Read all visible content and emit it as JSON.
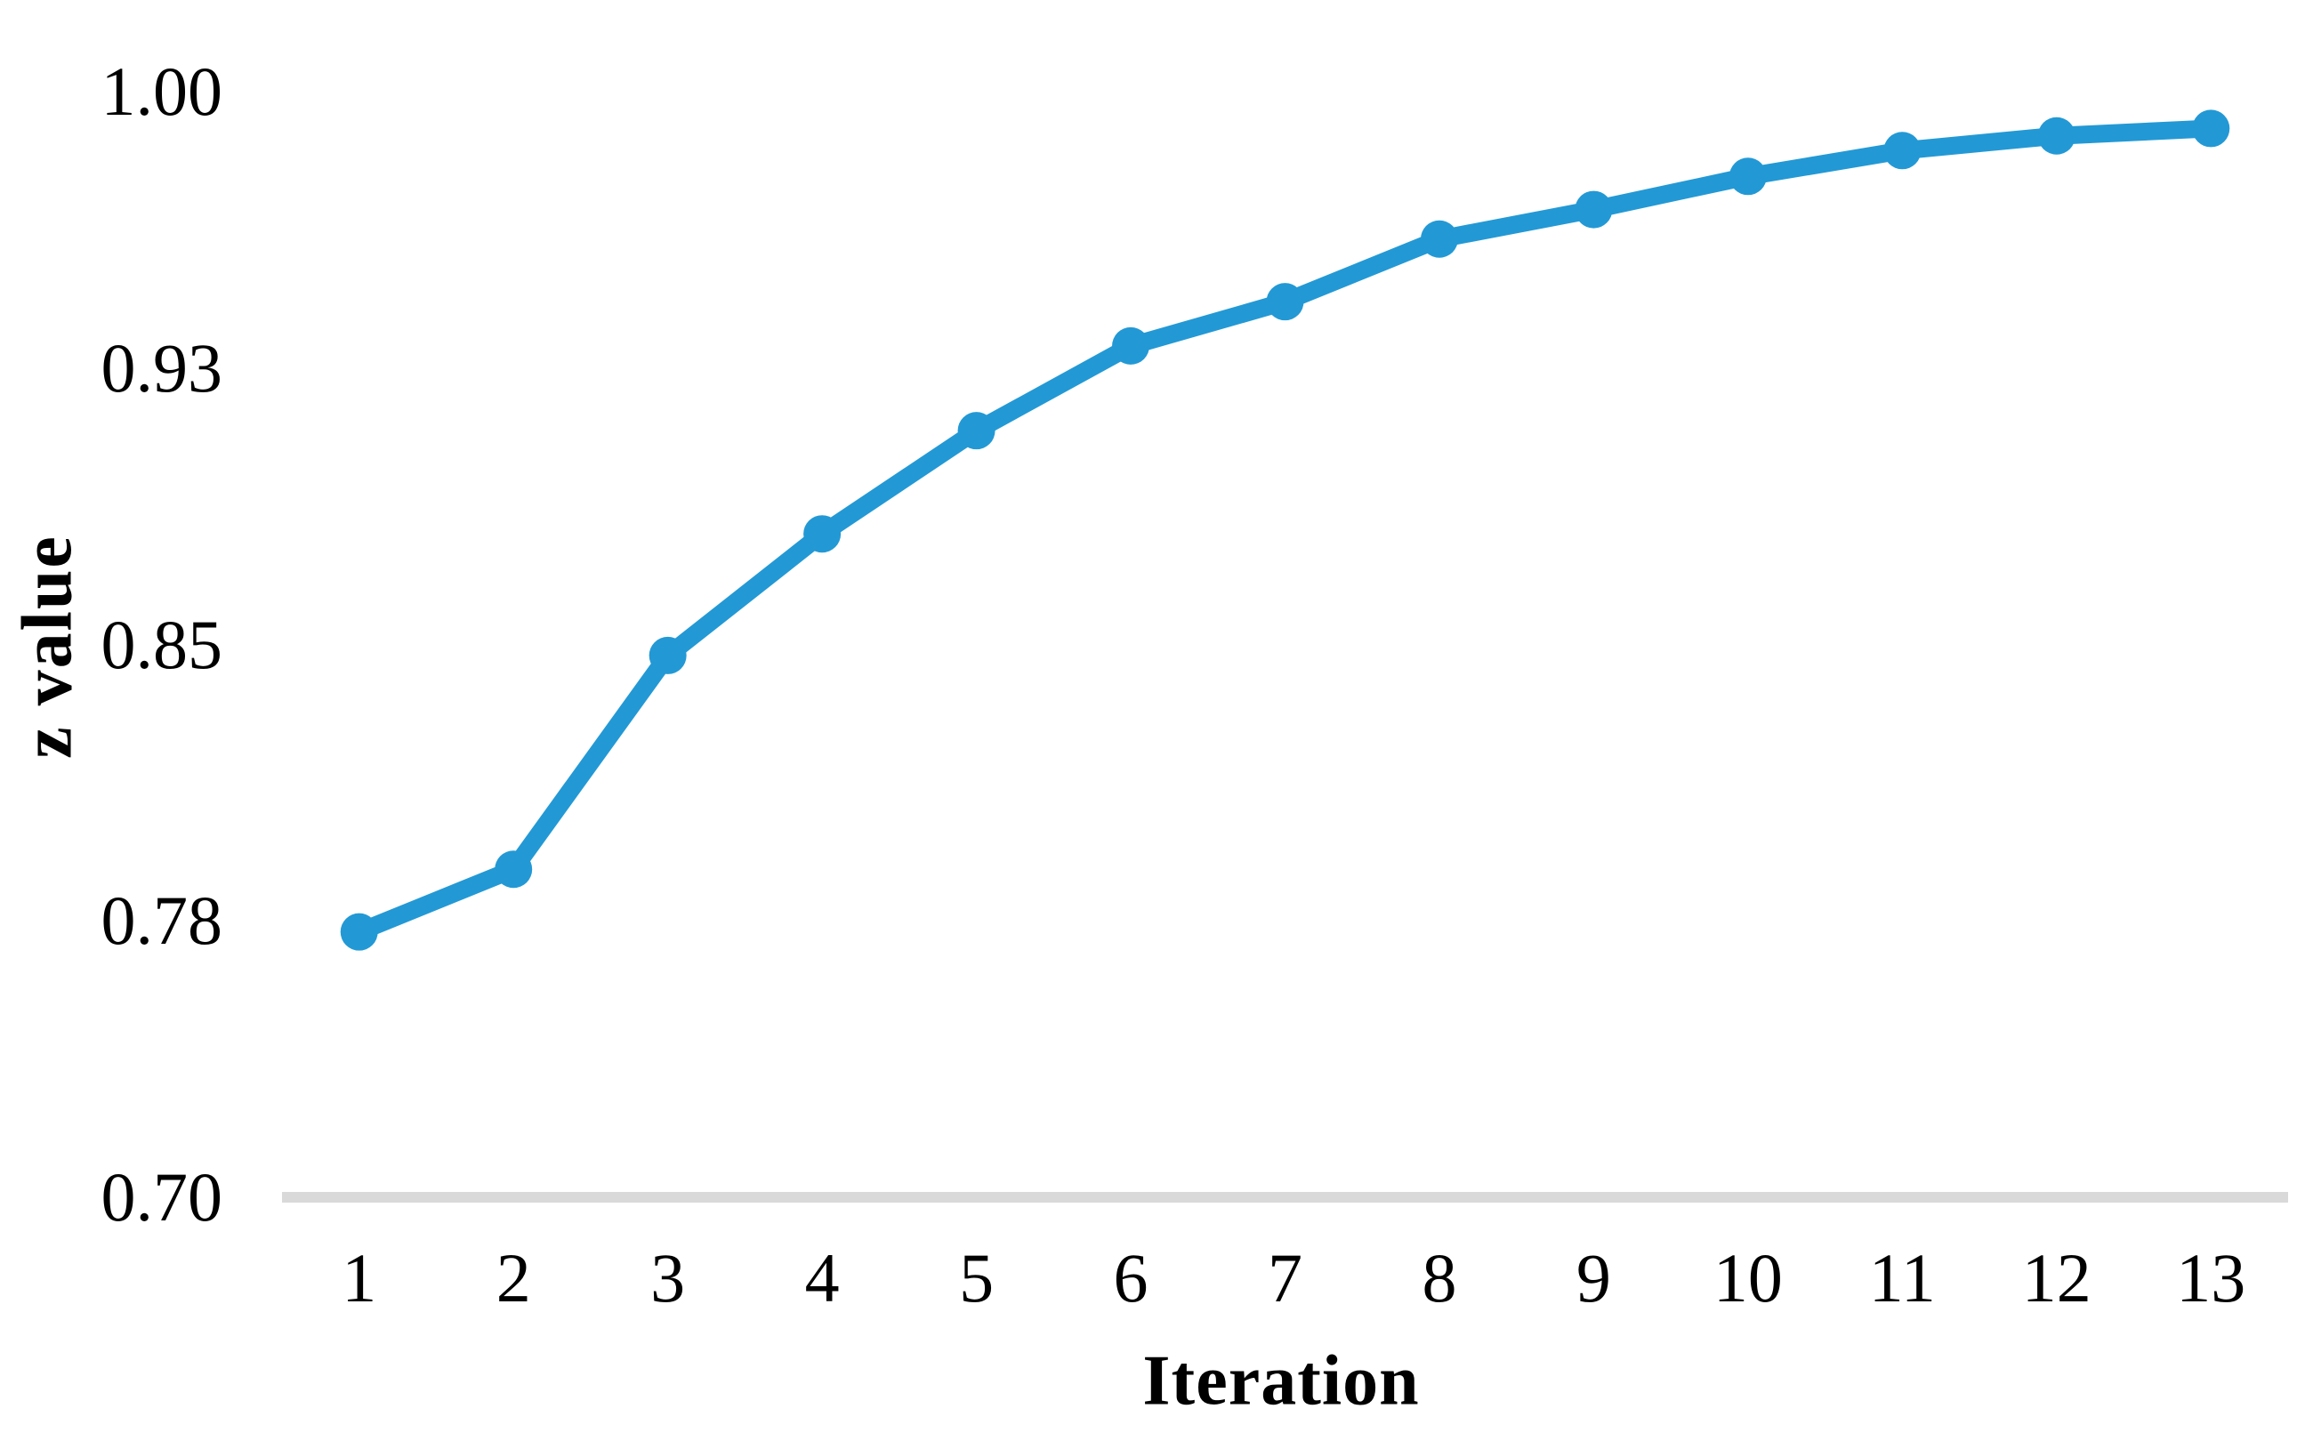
{
  "chart_data": {
    "type": "line",
    "title": "",
    "xlabel": "Iteration",
    "ylabel": "z value",
    "categories": [
      "1",
      "2",
      "3",
      "4",
      "5",
      "6",
      "7",
      "8",
      "9",
      "10",
      "11",
      "12",
      "13"
    ],
    "series": [
      {
        "name": "z value",
        "values": [
          0.772,
          0.789,
          0.847,
          0.88,
          0.908,
          0.931,
          0.943,
          0.96,
          0.968,
          0.977,
          0.984,
          0.988,
          0.99
        ]
      }
    ],
    "ylim": [
      0.7,
      1.0
    ],
    "yticks": [
      {
        "value": 0.7,
        "label": "0.70"
      },
      {
        "value": 0.775,
        "label": "0.78"
      },
      {
        "value": 0.85,
        "label": "0.85"
      },
      {
        "value": 0.925,
        "label": "0.93"
      },
      {
        "value": 1.0,
        "label": "1.00"
      }
    ],
    "grid": false,
    "legend": "none",
    "marker": "circle",
    "colors": {
      "line": "#2299d5",
      "marker": "#2299d5",
      "axis_line": "#d9d9d9",
      "text": "#000000",
      "background": "#ffffff"
    }
  }
}
